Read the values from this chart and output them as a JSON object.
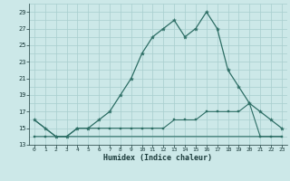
{
  "xlabel": "Humidex (Indice chaleur)",
  "x": [
    0,
    1,
    2,
    3,
    4,
    5,
    6,
    7,
    8,
    9,
    10,
    11,
    12,
    13,
    14,
    15,
    16,
    17,
    18,
    19,
    20,
    21,
    22,
    23
  ],
  "curve1": [
    16,
    15,
    14,
    14,
    15,
    15,
    16,
    17,
    19,
    21,
    24,
    26,
    27,
    28,
    26,
    27,
    29,
    27,
    22,
    20,
    18,
    17,
    16,
    15
  ],
  "curve2": [
    16,
    15,
    14,
    14,
    14,
    14,
    14,
    14,
    14,
    14,
    14,
    14,
    14,
    14,
    14,
    14,
    14,
    14,
    14,
    14,
    14,
    14,
    14,
    14
  ],
  "curve3": [
    14,
    14,
    14,
    14,
    15,
    15,
    15,
    15,
    15,
    15,
    15,
    15,
    15,
    16,
    16,
    16,
    17,
    17,
    17,
    17,
    18,
    14,
    14,
    14
  ],
  "line_color": "#2d6e65",
  "bg_color": "#cce8e8",
  "grid_color": "#a8cece",
  "ylim": [
    13,
    30
  ],
  "yticks": [
    13,
    15,
    17,
    19,
    21,
    23,
    25,
    27,
    29
  ],
  "xlim": [
    -0.5,
    23.5
  ],
  "xticks": [
    0,
    1,
    2,
    3,
    4,
    5,
    6,
    7,
    8,
    9,
    10,
    11,
    12,
    13,
    14,
    15,
    16,
    17,
    18,
    19,
    20,
    21,
    22,
    23
  ]
}
